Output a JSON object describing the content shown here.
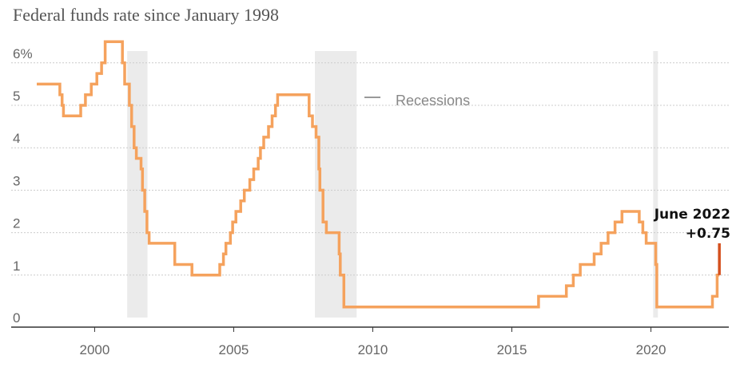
{
  "title": "Federal funds rate since January 1998",
  "colors": {
    "line": "#f5a25d",
    "highlight": "#d4501e",
    "recession": "#ebebeb",
    "grid": "#cccccc",
    "axis": "#333333"
  },
  "chart_data": {
    "type": "line",
    "title": "Federal funds rate since January 1998",
    "xlabel": "",
    "ylabel": "",
    "xlim": [
      1997,
      2022.8
    ],
    "ylim": [
      0,
      6.5
    ],
    "grid": true,
    "x_ticks": [
      {
        "value": 2000,
        "label": "2000"
      },
      {
        "value": 2005,
        "label": "2005"
      },
      {
        "value": 2010,
        "label": "2010"
      },
      {
        "value": 2015,
        "label": "2015"
      },
      {
        "value": 2020,
        "label": "2020"
      }
    ],
    "y_ticks": [
      {
        "value": 0,
        "label": "0"
      },
      {
        "value": 1,
        "label": "1"
      },
      {
        "value": 2,
        "label": "2"
      },
      {
        "value": 3,
        "label": "3"
      },
      {
        "value": 4,
        "label": "4"
      },
      {
        "value": 5,
        "label": "5"
      },
      {
        "value": 6,
        "label": "6%"
      }
    ],
    "recessions": [
      {
        "start": 2001.17,
        "end": 2001.9
      },
      {
        "start": 2007.92,
        "end": 2009.42
      },
      {
        "start": 2020.08,
        "end": 2020.25
      }
    ],
    "legend": {
      "label": "Recessions",
      "position": "top-center"
    },
    "series": [
      {
        "type": "step",
        "points": [
          [
            1997.92,
            5.5
          ],
          [
            1998.75,
            5.25
          ],
          [
            1998.83,
            5.0
          ],
          [
            1998.88,
            4.75
          ],
          [
            1999.5,
            5.0
          ],
          [
            1999.67,
            5.25
          ],
          [
            1999.88,
            5.5
          ],
          [
            2000.08,
            5.75
          ],
          [
            2000.25,
            6.0
          ],
          [
            2000.38,
            6.5
          ],
          [
            2001.0,
            6.0
          ],
          [
            2001.08,
            5.5
          ],
          [
            2001.25,
            5.0
          ],
          [
            2001.33,
            4.5
          ],
          [
            2001.42,
            4.0
          ],
          [
            2001.5,
            3.75
          ],
          [
            2001.67,
            3.5
          ],
          [
            2001.72,
            3.0
          ],
          [
            2001.8,
            2.5
          ],
          [
            2001.88,
            2.0
          ],
          [
            2001.96,
            1.75
          ],
          [
            2002.88,
            1.25
          ],
          [
            2003.5,
            1.0
          ],
          [
            2004.5,
            1.25
          ],
          [
            2004.63,
            1.5
          ],
          [
            2004.72,
            1.75
          ],
          [
            2004.88,
            2.0
          ],
          [
            2004.96,
            2.25
          ],
          [
            2005.08,
            2.5
          ],
          [
            2005.25,
            2.75
          ],
          [
            2005.38,
            3.0
          ],
          [
            2005.58,
            3.25
          ],
          [
            2005.72,
            3.5
          ],
          [
            2005.88,
            3.75
          ],
          [
            2005.96,
            4.0
          ],
          [
            2006.08,
            4.25
          ],
          [
            2006.25,
            4.5
          ],
          [
            2006.38,
            4.75
          ],
          [
            2006.5,
            5.0
          ],
          [
            2006.58,
            5.25
          ],
          [
            2007.71,
            4.75
          ],
          [
            2007.83,
            4.5
          ],
          [
            2007.96,
            4.25
          ],
          [
            2008.06,
            3.5
          ],
          [
            2008.1,
            3.0
          ],
          [
            2008.21,
            2.25
          ],
          [
            2008.33,
            2.0
          ],
          [
            2008.79,
            1.5
          ],
          [
            2008.83,
            1.0
          ],
          [
            2008.96,
            0.25
          ],
          [
            2015.96,
            0.5
          ],
          [
            2016.96,
            0.75
          ],
          [
            2017.21,
            1.0
          ],
          [
            2017.46,
            1.25
          ],
          [
            2017.96,
            1.5
          ],
          [
            2018.21,
            1.75
          ],
          [
            2018.46,
            2.0
          ],
          [
            2018.71,
            2.25
          ],
          [
            2018.96,
            2.5
          ],
          [
            2019.58,
            2.25
          ],
          [
            2019.71,
            2.0
          ],
          [
            2019.83,
            1.75
          ],
          [
            2020.17,
            1.25
          ],
          [
            2020.21,
            0.25
          ],
          [
            2022.21,
            0.5
          ],
          [
            2022.38,
            1.0
          ],
          [
            2022.46,
            1.0
          ]
        ]
      }
    ],
    "highlight": {
      "x": 2022.46,
      "from": 1.0,
      "to": 1.75
    },
    "annotation": {
      "line1": "June 2022",
      "line2": "+0.75"
    }
  }
}
